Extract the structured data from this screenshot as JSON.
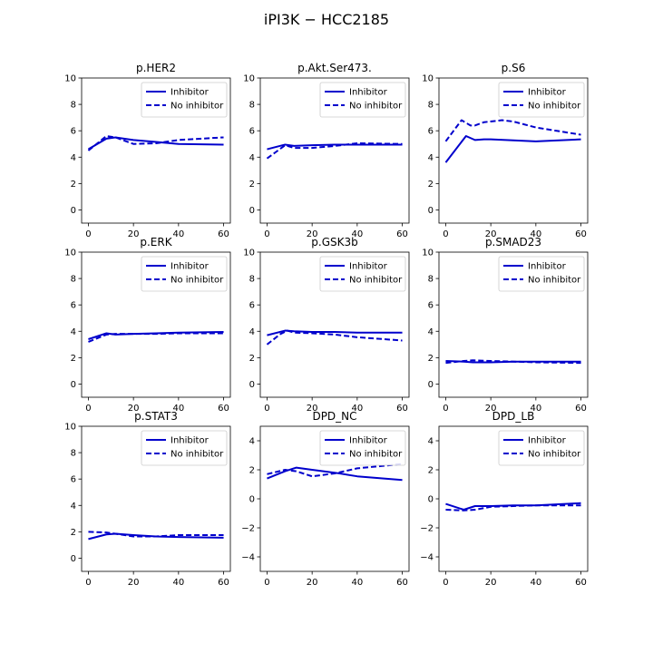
{
  "figure": {
    "title": "iPI3K − HCC2185"
  },
  "legend": {
    "entries": [
      "Inhibitor",
      "No inhibitor"
    ]
  },
  "colors": {
    "series": "#0000cc",
    "axes": "#000000",
    "background": "#ffffff"
  },
  "chart_data": [
    {
      "type": "line",
      "title": "p.HER2",
      "xlim": [
        -3,
        63
      ],
      "ylim": [
        -1,
        10
      ],
      "xticks": [
        0,
        20,
        40,
        60
      ],
      "yticks": [
        0,
        2,
        4,
        6,
        8,
        10
      ],
      "legend": "top-right",
      "series": [
        {
          "name": "Inhibitor",
          "style": "solid",
          "x": [
            0,
            8,
            12,
            20,
            30,
            40,
            60
          ],
          "y": [
            4.6,
            5.4,
            5.5,
            5.3,
            5.15,
            5.0,
            4.95
          ]
        },
        {
          "name": "No inhibitor",
          "style": "dashed",
          "x": [
            0,
            8,
            12,
            20,
            30,
            40,
            60
          ],
          "y": [
            4.5,
            5.6,
            5.5,
            5.0,
            5.05,
            5.3,
            5.5
          ]
        }
      ]
    },
    {
      "type": "line",
      "title": "p.Akt.Ser473.",
      "xlim": [
        -3,
        63
      ],
      "ylim": [
        -1,
        10
      ],
      "xticks": [
        0,
        20,
        40,
        60
      ],
      "yticks": [
        0,
        2,
        4,
        6,
        8,
        10
      ],
      "legend": "top-right",
      "series": [
        {
          "name": "Inhibitor",
          "style": "solid",
          "x": [
            0,
            8,
            12,
            20,
            30,
            40,
            60
          ],
          "y": [
            4.6,
            4.95,
            4.85,
            4.9,
            4.95,
            4.95,
            4.95
          ]
        },
        {
          "name": "No inhibitor",
          "style": "dashed",
          "x": [
            0,
            8,
            12,
            20,
            30,
            40,
            60
          ],
          "y": [
            3.9,
            4.9,
            4.7,
            4.7,
            4.85,
            5.05,
            5.0
          ]
        }
      ]
    },
    {
      "type": "line",
      "title": "p.S6",
      "xlim": [
        -3,
        63
      ],
      "ylim": [
        -1,
        10
      ],
      "xticks": [
        0,
        20,
        40,
        60
      ],
      "yticks": [
        0,
        2,
        4,
        6,
        8,
        10
      ],
      "legend": "top-right",
      "series": [
        {
          "name": "Inhibitor",
          "style": "solid",
          "x": [
            0,
            9,
            13,
            17,
            20,
            40,
            60
          ],
          "y": [
            3.6,
            5.6,
            5.3,
            5.35,
            5.35,
            5.2,
            5.35
          ]
        },
        {
          "name": "No inhibitor",
          "style": "dashed",
          "x": [
            0,
            7,
            11,
            13,
            17,
            25,
            30,
            40,
            60
          ],
          "y": [
            5.2,
            6.8,
            6.4,
            6.4,
            6.65,
            6.8,
            6.7,
            6.25,
            5.7
          ]
        }
      ]
    },
    {
      "type": "line",
      "title": "p.ERK",
      "xlim": [
        -3,
        63
      ],
      "ylim": [
        -1,
        10
      ],
      "xticks": [
        0,
        20,
        40,
        60
      ],
      "yticks": [
        0,
        2,
        4,
        6,
        8,
        10
      ],
      "legend": "top-right",
      "series": [
        {
          "name": "Inhibitor",
          "style": "solid",
          "x": [
            0,
            8,
            12,
            20,
            30,
            40,
            60
          ],
          "y": [
            3.4,
            3.85,
            3.75,
            3.8,
            3.85,
            3.9,
            3.95
          ]
        },
        {
          "name": "No inhibitor",
          "style": "dashed",
          "x": [
            0,
            8,
            12,
            20,
            30,
            40,
            60
          ],
          "y": [
            3.2,
            3.75,
            3.8,
            3.8,
            3.8,
            3.85,
            3.85
          ]
        }
      ]
    },
    {
      "type": "line",
      "title": "p.GSK3b",
      "xlim": [
        -3,
        63
      ],
      "ylim": [
        -1,
        10
      ],
      "xticks": [
        0,
        20,
        40,
        60
      ],
      "yticks": [
        0,
        2,
        4,
        6,
        8,
        10
      ],
      "legend": "top-right",
      "series": [
        {
          "name": "Inhibitor",
          "style": "solid",
          "x": [
            0,
            8,
            12,
            20,
            30,
            40,
            60
          ],
          "y": [
            3.7,
            4.05,
            4.0,
            3.95,
            3.95,
            3.9,
            3.9
          ]
        },
        {
          "name": "No inhibitor",
          "style": "dashed",
          "x": [
            0,
            6,
            9,
            12,
            20,
            30,
            40,
            60
          ],
          "y": [
            3.0,
            3.8,
            4.05,
            3.9,
            3.85,
            3.75,
            3.55,
            3.3
          ]
        }
      ]
    },
    {
      "type": "line",
      "title": "p.SMAD23",
      "xlim": [
        -3,
        63
      ],
      "ylim": [
        -1,
        10
      ],
      "xticks": [
        0,
        20,
        40,
        60
      ],
      "yticks": [
        0,
        2,
        4,
        6,
        8,
        10
      ],
      "legend": "top-right",
      "series": [
        {
          "name": "Inhibitor",
          "style": "solid",
          "x": [
            0,
            8,
            12,
            20,
            30,
            40,
            60
          ],
          "y": [
            1.75,
            1.7,
            1.65,
            1.65,
            1.7,
            1.7,
            1.7
          ]
        },
        {
          "name": "No inhibitor",
          "style": "dashed",
          "x": [
            0,
            8,
            12,
            20,
            30,
            40,
            60
          ],
          "y": [
            1.6,
            1.75,
            1.8,
            1.75,
            1.7,
            1.65,
            1.6
          ]
        }
      ]
    },
    {
      "type": "line",
      "title": "p.STAT3",
      "xlim": [
        -3,
        63
      ],
      "ylim": [
        -1,
        10
      ],
      "xticks": [
        0,
        20,
        40,
        60
      ],
      "yticks": [
        0,
        2,
        4,
        6,
        8,
        10
      ],
      "legend": "top-right",
      "series": [
        {
          "name": "Inhibitor",
          "style": "solid",
          "x": [
            0,
            8,
            12,
            20,
            30,
            40,
            60
          ],
          "y": [
            1.45,
            1.8,
            1.85,
            1.75,
            1.65,
            1.6,
            1.55
          ]
        },
        {
          "name": "No inhibitor",
          "style": "dashed",
          "x": [
            0,
            8,
            12,
            20,
            30,
            40,
            60
          ],
          "y": [
            2.0,
            1.95,
            1.85,
            1.65,
            1.65,
            1.75,
            1.75
          ]
        }
      ]
    },
    {
      "type": "line",
      "title": "DPD_NC",
      "xlim": [
        -3,
        63
      ],
      "ylim": [
        -5,
        5
      ],
      "xticks": [
        0,
        20,
        40,
        60
      ],
      "yticks": [
        -4,
        -2,
        0,
        2,
        4
      ],
      "legend": "top-right",
      "series": [
        {
          "name": "Inhibitor",
          "style": "solid",
          "x": [
            0,
            8,
            13,
            20,
            30,
            40,
            60
          ],
          "y": [
            1.4,
            1.9,
            2.15,
            2.0,
            1.8,
            1.55,
            1.3
          ]
        },
        {
          "name": "No inhibitor",
          "style": "dashed",
          "x": [
            0,
            8,
            13,
            20,
            30,
            40,
            60
          ],
          "y": [
            1.7,
            2.0,
            1.9,
            1.55,
            1.75,
            2.1,
            2.4
          ]
        }
      ]
    },
    {
      "type": "line",
      "title": "DPD_LB",
      "xlim": [
        -3,
        63
      ],
      "ylim": [
        -5,
        5
      ],
      "xticks": [
        0,
        20,
        40,
        60
      ],
      "yticks": [
        -4,
        -2,
        0,
        2,
        4
      ],
      "legend": "top-right",
      "series": [
        {
          "name": "Inhibitor",
          "style": "solid",
          "x": [
            0,
            8,
            13,
            20,
            30,
            40,
            60
          ],
          "y": [
            -0.35,
            -0.75,
            -0.5,
            -0.5,
            -0.45,
            -0.45,
            -0.3
          ]
        },
        {
          "name": "No inhibitor",
          "style": "dashed",
          "x": [
            0,
            8,
            13,
            20,
            30,
            40,
            60
          ],
          "y": [
            -0.75,
            -0.8,
            -0.75,
            -0.55,
            -0.5,
            -0.45,
            -0.45
          ]
        }
      ]
    }
  ]
}
